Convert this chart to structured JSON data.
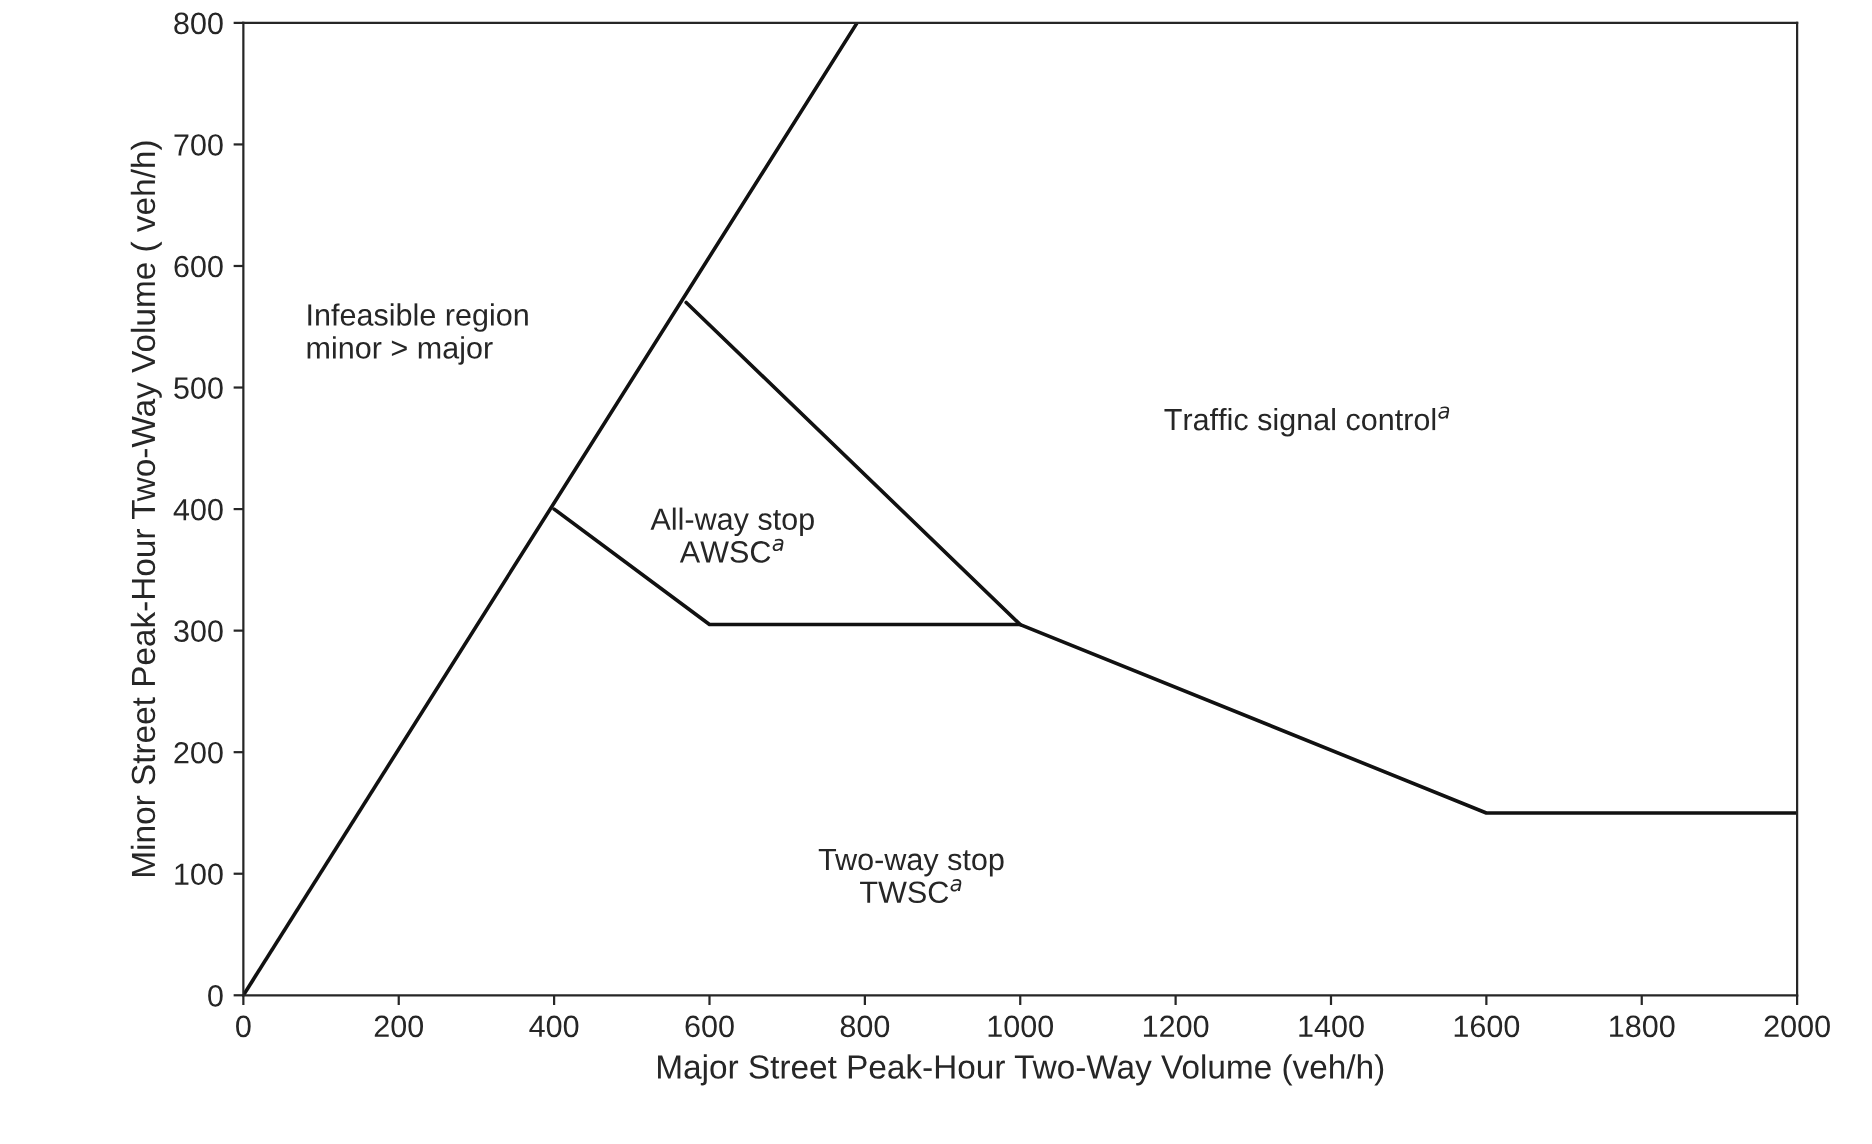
{
  "chart_data": {
    "type": "line",
    "xlabel": "Major Street Peak-Hour Two-Way Volume (veh/h)",
    "ylabel": "Minor Street Peak-Hour Two-Way Volume ( veh/h)",
    "xlim": [
      0,
      2000
    ],
    "ylim": [
      0,
      800
    ],
    "xticks": [
      0,
      200,
      400,
      600,
      800,
      1000,
      1200,
      1400,
      1600,
      1800,
      2000
    ],
    "yticks": [
      0,
      100,
      200,
      300,
      400,
      500,
      600,
      700,
      800
    ],
    "grid": false,
    "marker": "none",
    "line_style": "solid",
    "series": [
      {
        "color": "#111111",
        "x": [
          0,
          790
        ],
        "values": [
          0,
          800
        ]
      },
      {
        "color": "#111111",
        "x": [
          400,
          600,
          1000,
          1600,
          2000
        ],
        "values": [
          400,
          305,
          305,
          150,
          150
        ]
      },
      {
        "color": "#111111",
        "x": [
          570,
          1000
        ],
        "values": [
          570,
          305
        ]
      }
    ],
    "annotations": [
      "Infeasible region\nminor > major",
      "All-way stop\nAWSC$^{a}$",
      "Traffic signal control$^{a}$",
      "Two-way stop\nTWSC$^{a}$"
    ]
  }
}
